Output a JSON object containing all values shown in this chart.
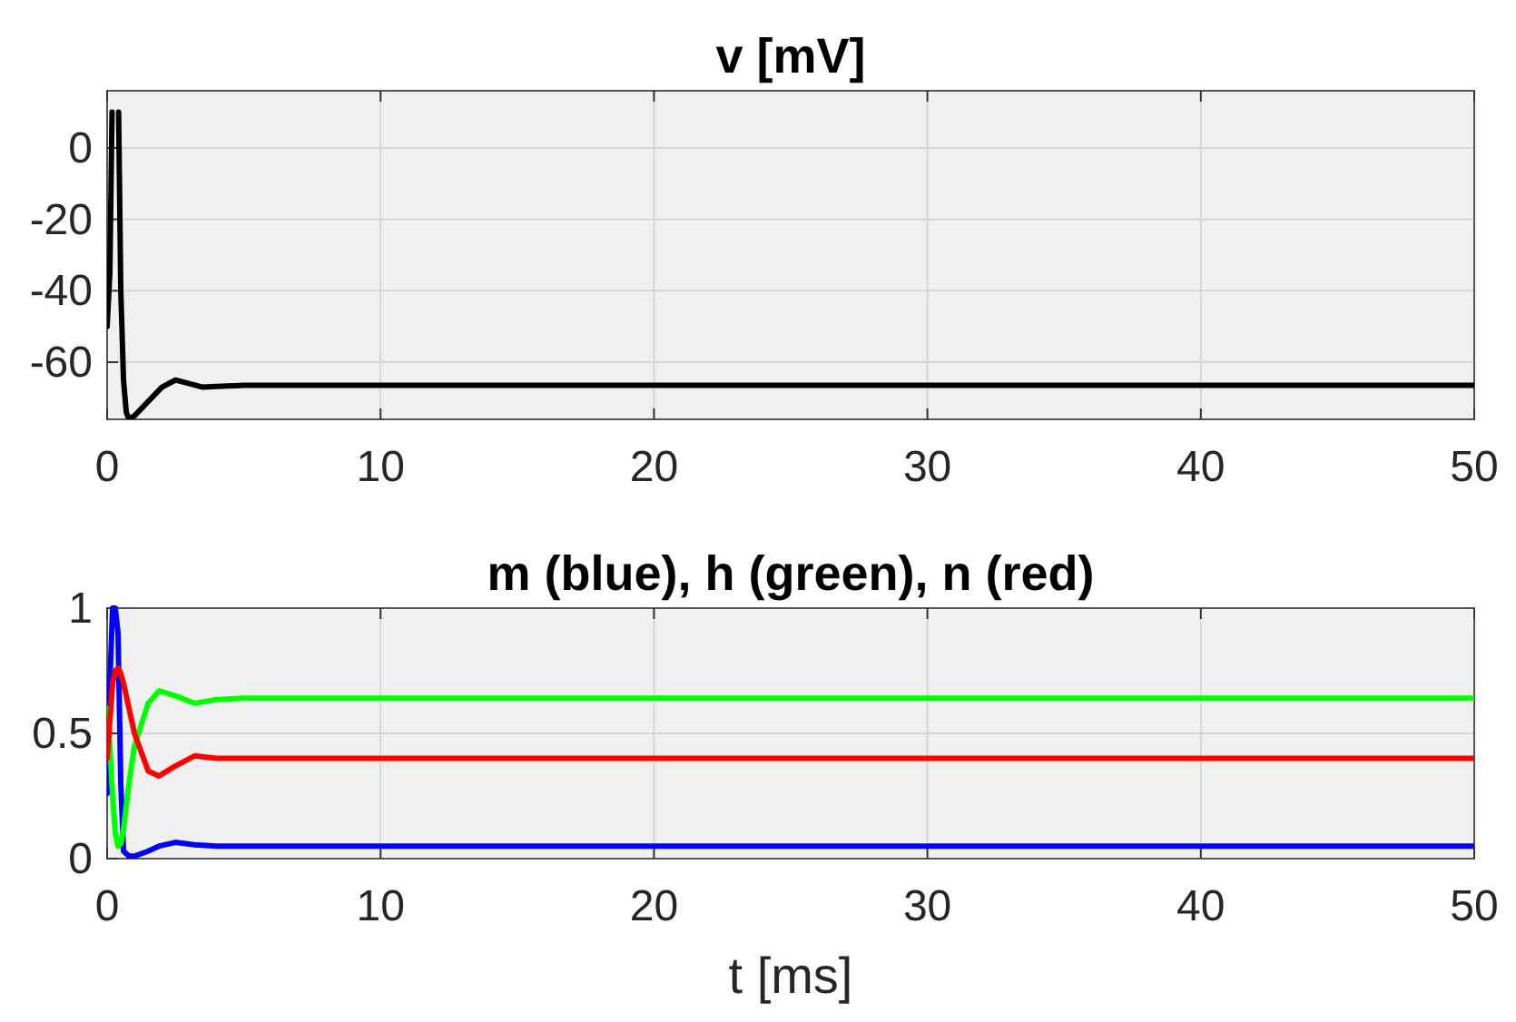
{
  "chart_data": [
    {
      "type": "line",
      "title": "v [mV]",
      "x": [
        0,
        0.1,
        0.18,
        0.3,
        0.42,
        0.5,
        0.6,
        0.7,
        0.8,
        1.0,
        1.5,
        2.0,
        2.5,
        3.0,
        3.5,
        4,
        5,
        50
      ],
      "series": [
        {
          "color": "#000000",
          "values": [
            -50,
            -35,
            10,
            null,
            10,
            -40,
            -65,
            -74,
            -76,
            -75,
            -71,
            -67,
            -65,
            -66,
            -67,
            -66.8,
            -66.5,
            -66.5
          ]
        }
      ],
      "xlim": [
        0,
        50
      ],
      "xticks": [
        0,
        10,
        20,
        30,
        40,
        50
      ],
      "ylim": [
        -76,
        16
      ],
      "yticks": [
        -60,
        -40,
        -20,
        0
      ],
      "grid": true
    },
    {
      "type": "line",
      "title": "m (blue), h (green), n (red)",
      "xlabel": "t [ms]",
      "x": [
        0,
        0.1,
        0.2,
        0.3,
        0.4,
        0.5,
        0.6,
        0.8,
        1.0,
        1.5,
        1.9,
        2.5,
        3.2,
        4,
        5,
        50
      ],
      "series": [
        {
          "color": "#0000ff",
          "values": [
            0.26,
            0.7,
            1,
            1,
            0.9,
            0.3,
            0.03,
            0.01,
            0.01,
            0.03,
            0.05,
            0.065,
            0.055,
            0.05,
            0.05,
            0.05
          ]
        },
        {
          "color": "#00ff00",
          "values": [
            0.6,
            0.45,
            0.25,
            0.1,
            0.05,
            0.06,
            0.12,
            0.3,
            0.45,
            0.62,
            0.67,
            0.65,
            0.62,
            0.635,
            0.64,
            0.64
          ]
        },
        {
          "color": "#ff0000",
          "values": [
            0.4,
            0.55,
            0.7,
            0.75,
            0.76,
            0.74,
            0.7,
            0.6,
            0.5,
            0.35,
            0.33,
            0.37,
            0.41,
            0.4,
            0.4,
            0.4
          ]
        }
      ],
      "xlim": [
        0,
        50
      ],
      "xticks": [
        0,
        10,
        20,
        30,
        40,
        50
      ],
      "ylim": [
        0,
        1
      ],
      "yticks": [
        0,
        0.5,
        1
      ],
      "grid": true
    }
  ]
}
